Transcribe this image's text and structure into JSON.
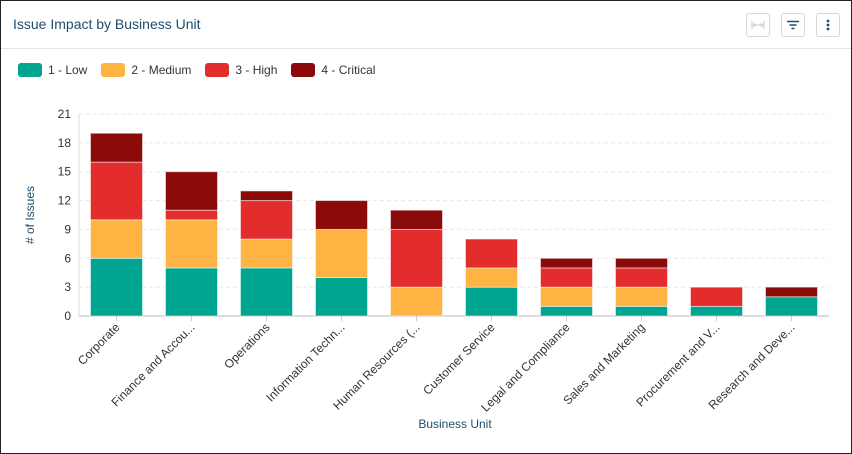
{
  "header": {
    "title": "Issue Impact by Business Unit"
  },
  "icons": {
    "fit": "fit-width-icon",
    "filter": "filter-icon",
    "menu": "more-vertical-icon"
  },
  "chart_data": {
    "type": "bar",
    "stacked": true,
    "xlabel": "Business Unit",
    "ylabel": "# of Issues",
    "ylim": [
      0,
      21
    ],
    "yticks": [
      0,
      3,
      6,
      9,
      12,
      15,
      18,
      21
    ],
    "grid": true,
    "legend_position": "top-left",
    "categories": [
      "Corporate",
      "Finance and Accou...",
      "Operations",
      "Information Techn...",
      "Human Resources (...",
      "Customer Service",
      "Legal and Compliance",
      "Sales and Marketing",
      "Procurement and V...",
      "Research and Deve..."
    ],
    "series": [
      {
        "name": "1 - Low",
        "color": "#00a591",
        "values": [
          6,
          5,
          5,
          4,
          0,
          3,
          1,
          1,
          1,
          2
        ]
      },
      {
        "name": "2 - Medium",
        "color": "#ffb342",
        "values": [
          4,
          5,
          3,
          5,
          3,
          2,
          2,
          2,
          0,
          0
        ]
      },
      {
        "name": "3 - High",
        "color": "#e32d2d",
        "values": [
          6,
          1,
          4,
          0,
          6,
          3,
          2,
          2,
          2,
          0
        ]
      },
      {
        "name": "4 - Critical",
        "color": "#8b0a0a",
        "values": [
          3,
          4,
          1,
          3,
          2,
          0,
          1,
          1,
          0,
          1
        ]
      }
    ]
  }
}
